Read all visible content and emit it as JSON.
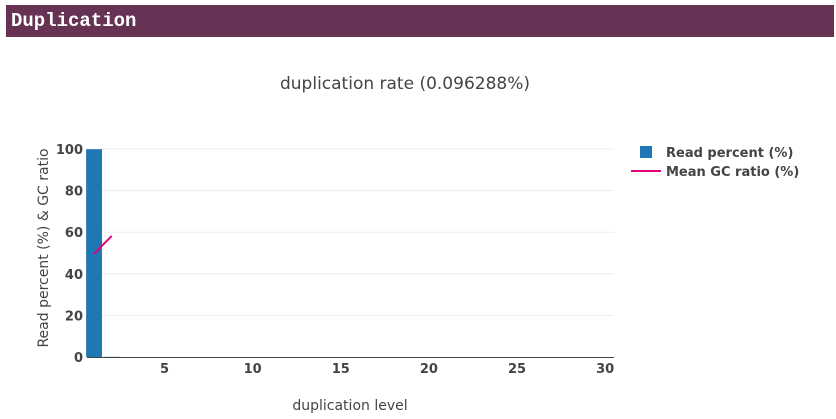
{
  "section": {
    "title": "Duplication"
  },
  "colors": {
    "header_bg": "#663355",
    "bar": "#1f77b4",
    "line": "#e6007e",
    "grid": "#eeeeee",
    "axis": "#444444"
  },
  "chart_data": {
    "type": "bar",
    "title": "duplication rate (0.096288%)",
    "xlabel": "duplication level",
    "ylabel": "Read percent (%) & GC ratio",
    "xlim": [
      0.6,
      30.5
    ],
    "ylim": [
      0,
      100
    ],
    "xticks": [
      5,
      10,
      15,
      20,
      25,
      30
    ],
    "yticks": [
      0,
      20,
      40,
      60,
      80,
      100
    ],
    "grid": true,
    "legend_position": "top-right",
    "series": [
      {
        "name": "Read percent (%)",
        "kind": "bar",
        "x": [
          1,
          2,
          3,
          4,
          5,
          6,
          7,
          8,
          9,
          10,
          11,
          12,
          13,
          14,
          15,
          16,
          17,
          18,
          19,
          20,
          21,
          22,
          23,
          24,
          25,
          26,
          27,
          28,
          29,
          30
        ],
        "values": [
          99.9,
          0.09,
          0.003,
          0,
          0,
          0,
          0,
          0,
          0,
          0,
          0,
          0,
          0,
          0,
          0,
          0,
          0,
          0,
          0,
          0,
          0,
          0,
          0,
          0,
          0,
          0,
          0,
          0,
          0,
          0
        ]
      },
      {
        "name": "Mean GC ratio (%)",
        "kind": "line",
        "x": [
          1,
          2
        ],
        "values": [
          49.6,
          58.2
        ]
      }
    ]
  }
}
